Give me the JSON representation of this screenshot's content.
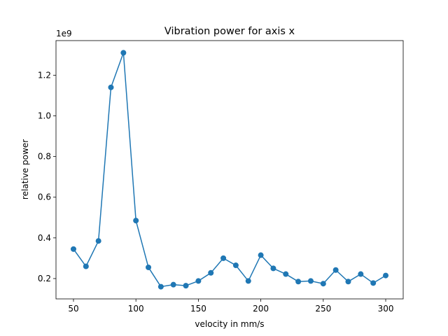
{
  "chart_data": {
    "type": "line",
    "title": "Vibration power for axis x",
    "xlabel": "velocity in mm/s",
    "ylabel": "relative power",
    "y_offset_label": "1e9",
    "y_scale": 1000000000,
    "xlim": [
      36,
      314
    ],
    "ylim": [
      0.1,
      1.37
    ],
    "x_ticks": [
      50,
      100,
      150,
      200,
      250,
      300
    ],
    "y_ticks": [
      0.2,
      0.4,
      0.6,
      0.8,
      1.0,
      1.2
    ],
    "grid": false,
    "color": "#1f77b4",
    "series": [
      {
        "x": [
          50,
          60,
          70,
          80,
          90,
          100,
          110,
          120,
          130,
          140,
          150,
          160,
          170,
          180,
          190,
          200,
          210,
          220,
          230,
          240,
          250,
          260,
          270,
          280,
          290,
          300
        ],
        "values": [
          0.345,
          0.26,
          0.385,
          1.14,
          1.31,
          0.485,
          0.255,
          0.16,
          0.17,
          0.165,
          0.188,
          0.228,
          0.3,
          0.265,
          0.188,
          0.315,
          0.25,
          0.222,
          0.185,
          0.188,
          0.175,
          0.242,
          0.185,
          0.222,
          0.178,
          0.215
        ]
      }
    ]
  }
}
